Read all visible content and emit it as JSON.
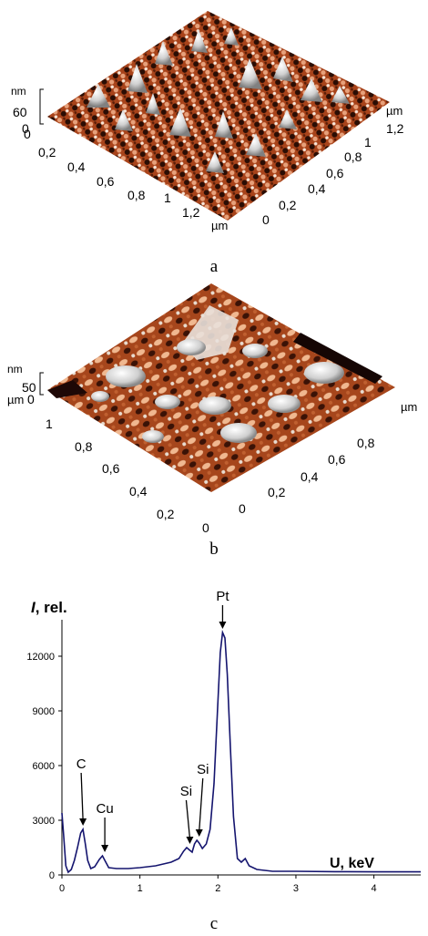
{
  "panel_a": {
    "caption": "a",
    "z_unit": "nm",
    "z_max": "60",
    "z_zero": "0",
    "x_origin": "0",
    "left_axis_ticks": [
      "0,2",
      "0,4",
      "0,6",
      "0,8",
      "1",
      "1,2"
    ],
    "left_axis_unit": "µm",
    "right_axis_ticks": [
      "0",
      "0,2",
      "0,4",
      "0,6",
      "0,8",
      "1",
      "1,2"
    ],
    "right_axis_unit": "µm"
  },
  "panel_b": {
    "caption": "b",
    "z_unit": "nm",
    "z_max": "50",
    "z_zero": "0",
    "z_prefix": "µm",
    "left_axis_ticks": [
      "1",
      "0,8",
      "0,6",
      "0,4",
      "0,2",
      "0"
    ],
    "right_axis_ticks": [
      "0",
      "0,2",
      "0,4",
      "0,6",
      "0,8"
    ],
    "right_axis_unit": "µm"
  },
  "panel_c": {
    "caption": "c",
    "y_axis_title_italic": "I",
    "y_axis_title_rest": ", rel.",
    "x_axis_title": "U, keV",
    "colors": {
      "spectrum": "#14146e",
      "axis": "#000000"
    },
    "peak_labels": [
      {
        "label": "C"
      },
      {
        "label": "Cu"
      },
      {
        "label": "Si"
      },
      {
        "label": "Si"
      },
      {
        "label": "Pt"
      }
    ],
    "chart_data": {
      "type": "line",
      "xlabel": "U, keV",
      "ylabel": "I, rel.",
      "xlim": [
        0,
        4.6
      ],
      "ylim": [
        0,
        14000
      ],
      "x_ticks": [
        0,
        1,
        2,
        3,
        4
      ],
      "y_ticks": [
        0,
        3000,
        6000,
        9000,
        12000
      ],
      "grid": false,
      "series": [
        {
          "x": [
            0.0,
            0.02,
            0.05,
            0.08,
            0.12,
            0.16,
            0.2,
            0.24,
            0.27,
            0.3,
            0.33,
            0.37,
            0.42,
            0.48,
            0.52,
            0.55,
            0.6,
            0.7,
            0.85,
            1.0,
            1.2,
            1.4,
            1.5,
            1.56,
            1.6,
            1.64,
            1.67,
            1.7,
            1.73,
            1.76,
            1.8,
            1.85,
            1.9,
            1.95,
            2.0,
            2.03,
            2.06,
            2.09,
            2.12,
            2.16,
            2.2,
            2.25,
            2.3,
            2.35,
            2.4,
            2.5,
            2.7,
            3.0,
            3.5,
            4.0,
            4.6
          ],
          "y": [
            3400,
            2300,
            500,
            150,
            300,
            800,
            1500,
            2300,
            2500,
            1700,
            800,
            350,
            450,
            850,
            1050,
            800,
            400,
            350,
            350,
            400,
            500,
            700,
            900,
            1300,
            1500,
            1350,
            1250,
            1700,
            1900,
            1750,
            1450,
            1700,
            2500,
            5000,
            9500,
            12200,
            13300,
            13000,
            11000,
            7000,
            3200,
            900,
            700,
            900,
            500,
            300,
            200,
            200,
            180,
            170,
            170
          ]
        }
      ],
      "annotations": [
        {
          "text": "C",
          "x": 0.27,
          "y": 2500
        },
        {
          "text": "Cu",
          "x": 0.55,
          "y": 1050
        },
        {
          "text": "Si",
          "x": 1.64,
          "y": 1500
        },
        {
          "text": "Si",
          "x": 1.76,
          "y": 1900
        },
        {
          "text": "Pt",
          "x": 2.06,
          "y": 13300
        }
      ]
    }
  }
}
